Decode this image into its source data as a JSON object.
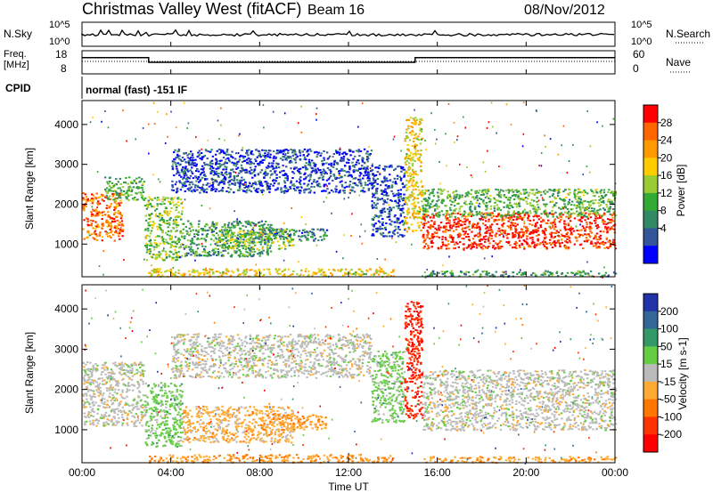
{
  "header": {
    "station": "Christmas Valley West (fitACF)",
    "beam": "Beam 16",
    "date": "08/Nov/2012"
  },
  "top_panels": {
    "nsky_label": "N.Sky",
    "nsky_ticks": [
      "10^5",
      "10^0"
    ],
    "nsearch_label": "N.Search",
    "nsearch_ticks": [
      "10^5",
      "10^0"
    ],
    "freq_label_1": "Freq.",
    "freq_label_2": "[MHz]",
    "freq_ticks": [
      "18",
      "8"
    ],
    "nave_label": "Nave",
    "nave_ticks": [
      "60",
      "0"
    ],
    "cpid_label": "CPID",
    "cpid_value": "normal (fast) -151 IF"
  },
  "power_colorbar": {
    "label": "Power [dB]",
    "ticks": [
      "28",
      "24",
      "20",
      "16",
      "12",
      "8",
      "4"
    ],
    "colors": [
      "#ff0000",
      "#ff6600",
      "#ff9900",
      "#ffcc00",
      "#99cc33",
      "#33aa33",
      "#338866",
      "#335599",
      "#0000ff"
    ]
  },
  "velocity_colorbar": {
    "label": "Velocity [m s-1]",
    "ticks": [
      "200",
      "100",
      "50",
      "15",
      "-15",
      "-50",
      "-100",
      "-200"
    ],
    "colors": [
      "#2233aa",
      "#336699",
      "#339966",
      "#66cc44",
      "#bbbbbb",
      "#ffaa33",
      "#ff7700",
      "#ff3300",
      "#ff0000"
    ]
  },
  "x_axis": {
    "label": "Time UT",
    "ticks": [
      "00:00",
      "04:00",
      "08:00",
      "12:00",
      "16:00",
      "20:00",
      "00:00"
    ]
  },
  "y_axis": {
    "label": "Slant Range [km]",
    "ticks": [
      "4000",
      "3000",
      "2000",
      "1000"
    ]
  },
  "chart_data": [
    {
      "type": "heatmap",
      "title": "Power",
      "ylabel": "Slant Range [km]",
      "xlabel": "Time UT",
      "xlim_hours": [
        0,
        24
      ],
      "ylim": [
        180,
        4600
      ],
      "colorbar_range": [
        0,
        30
      ],
      "regions": [
        {
          "t": [
            0.0,
            1.8
          ],
          "r": [
            1100,
            2300
          ],
          "level": 24
        },
        {
          "t": [
            1.0,
            2.8
          ],
          "r": [
            2100,
            2700
          ],
          "level": 12
        },
        {
          "t": [
            2.8,
            4.5
          ],
          "r": [
            600,
            2200
          ],
          "level": 14
        },
        {
          "t": [
            4.5,
            8.5
          ],
          "r": [
            700,
            1600
          ],
          "level": 10
        },
        {
          "t": [
            6.0,
            9.5
          ],
          "r": [
            900,
            1400
          ],
          "level": 14
        },
        {
          "t": [
            8.0,
            11.0
          ],
          "r": [
            1100,
            1400
          ],
          "level": 8
        },
        {
          "t": [
            3.0,
            14.0
          ],
          "r": [
            200,
            400
          ],
          "level": 18
        },
        {
          "t": [
            4.0,
            13.0
          ],
          "r": [
            2300,
            3400
          ],
          "level": 4
        },
        {
          "t": [
            13.0,
            14.5
          ],
          "r": [
            1200,
            3000
          ],
          "level": 4
        },
        {
          "t": [
            14.5,
            15.3
          ],
          "r": [
            1300,
            4200
          ],
          "level": 18
        },
        {
          "t": [
            15.3,
            24.0
          ],
          "r": [
            900,
            1800
          ],
          "level": 28
        },
        {
          "t": [
            15.3,
            24.0
          ],
          "r": [
            1700,
            2400
          ],
          "level": 12
        },
        {
          "t": [
            15.3,
            24.0
          ],
          "r": [
            200,
            350
          ],
          "level": 10
        }
      ]
    },
    {
      "type": "heatmap",
      "title": "Velocity",
      "ylabel": "Slant Range [km]",
      "xlabel": "Time UT",
      "xlim_hours": [
        0,
        24
      ],
      "ylim": [
        180,
        4600
      ],
      "colorbar_range": [
        -200,
        200
      ],
      "regions": [
        {
          "t": [
            0.0,
            2.8
          ],
          "r": [
            1100,
            2700
          ],
          "level": 0
        },
        {
          "t": [
            2.8,
            4.5
          ],
          "r": [
            600,
            2200
          ],
          "level": 40
        },
        {
          "t": [
            4.5,
            9.5
          ],
          "r": [
            700,
            1600
          ],
          "level": -40
        },
        {
          "t": [
            8.0,
            11.0
          ],
          "r": [
            1000,
            1400
          ],
          "level": -60
        },
        {
          "t": [
            3.0,
            14.0
          ],
          "r": [
            200,
            400
          ],
          "level": -60
        },
        {
          "t": [
            4.0,
            13.0
          ],
          "r": [
            2300,
            3400
          ],
          "level": 0
        },
        {
          "t": [
            13.0,
            14.5
          ],
          "r": [
            1200,
            3000
          ],
          "level": 40
        },
        {
          "t": [
            14.5,
            15.3
          ],
          "r": [
            1300,
            4200
          ],
          "level": -150
        },
        {
          "t": [
            15.3,
            24.0
          ],
          "r": [
            1000,
            2500
          ],
          "level": 0
        },
        {
          "t": [
            15.3,
            24.0
          ],
          "r": [
            200,
            350
          ],
          "level": -60
        }
      ]
    }
  ],
  "frequency_series": {
    "x_hours": [
      0,
      3,
      3,
      15,
      15,
      24
    ],
    "y_mhz": [
      15,
      15,
      13,
      13,
      15,
      15
    ]
  }
}
